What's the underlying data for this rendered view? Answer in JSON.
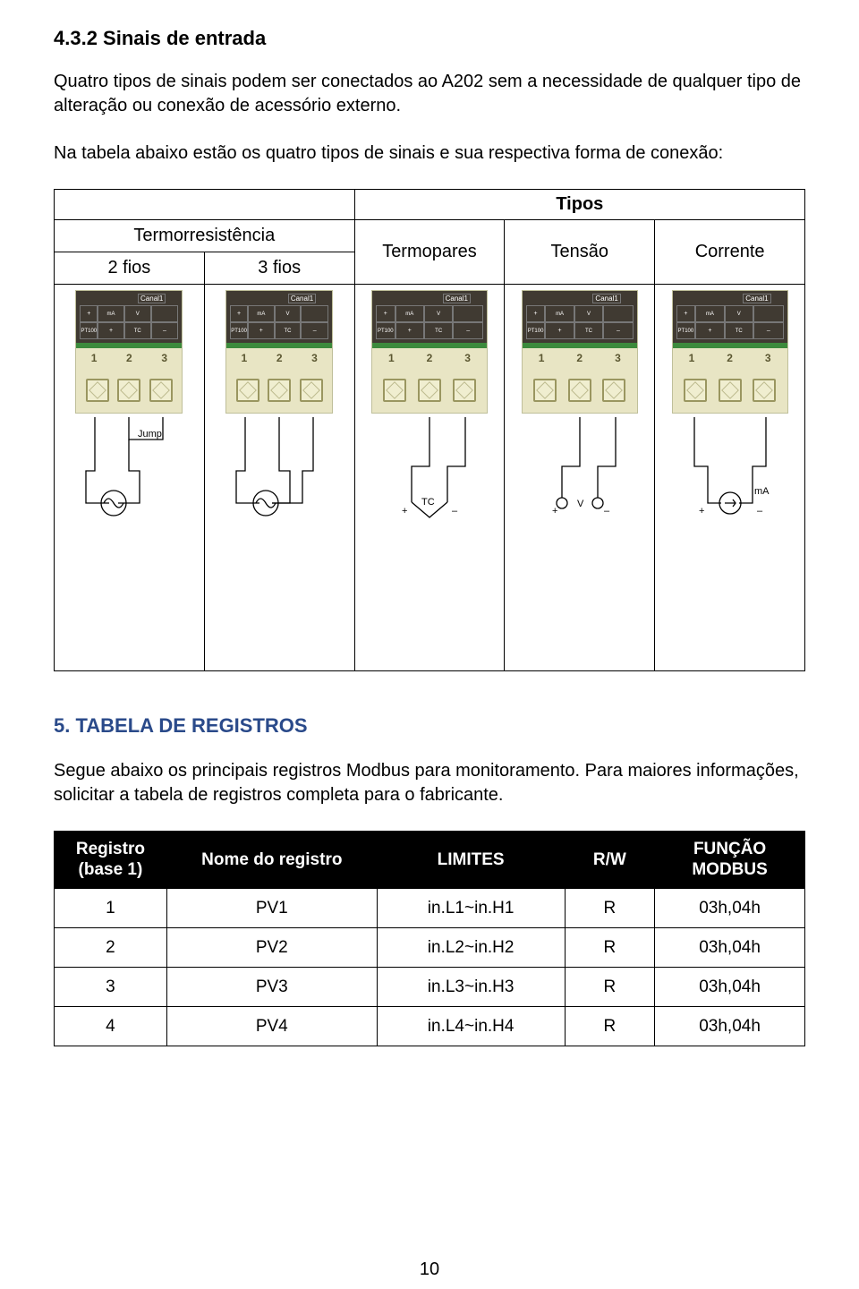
{
  "section_4_3_2": {
    "title": "4.3.2 Sinais de entrada",
    "para1": "Quatro tipos de sinais podem ser conectados ao A202 sem a necessidade de qualquer tipo de alteração ou conexão de acessório externo.",
    "para2": "Na tabela abaixo estão os quatro tipos de sinais e sua respectiva forma de conexão:"
  },
  "types_table": {
    "header_main": "Tipos",
    "col_group": "Termorresistência",
    "col_tp": "Termopares",
    "col_tensao": "Tensão",
    "col_corrente": "Corrente",
    "sub_2fios": "2 fios",
    "sub_3fios": "3 fios",
    "module": {
      "canal": "Canal1",
      "pt100": "PT100",
      "ma": "mA",
      "v": "V",
      "tc": "TC",
      "plus": "+",
      "minus": "–",
      "n1": "1",
      "n2": "2",
      "n3": "3",
      "jump": "Jump",
      "ma_out": "mA",
      "v_out": "V",
      "tc_out": "TC"
    }
  },
  "section_5": {
    "title": "5. TABELA DE REGISTROS",
    "para": "Segue abaixo os principais registros Modbus para monitoramento. Para maiores informações, solicitar a tabela de registros completa para o fabricante."
  },
  "reg_table": {
    "head": {
      "registro_l1": "Registro",
      "registro_l2": "(base 1)",
      "nome": "Nome do registro",
      "limites": "LIMITES",
      "rw": "R/W",
      "funcao_l1": "FUNÇÃO",
      "funcao_l2": "MODBUS"
    },
    "rows": [
      {
        "reg": "1",
        "nome": "PV1",
        "lim": "in.L1~in.H1",
        "rw": "R",
        "fn": "03h,04h"
      },
      {
        "reg": "2",
        "nome": "PV2",
        "lim": "in.L2~in.H2",
        "rw": "R",
        "fn": "03h,04h"
      },
      {
        "reg": "3",
        "nome": "PV3",
        "lim": "in.L3~in.H3",
        "rw": "R",
        "fn": "03h,04h"
      },
      {
        "reg": "4",
        "nome": "PV4",
        "lim": "in.L4~in.H4",
        "rw": "R",
        "fn": "03h,04h"
      }
    ]
  },
  "page_number": "10",
  "colors": {
    "blue_heading": "#2a4a8a",
    "green_strip": "#3c8a3c",
    "module_bg": "#e8e5c4",
    "dark_panel": "#403a32",
    "reg_header_bg": "#000000",
    "reg_header_fg": "#ffffff"
  }
}
